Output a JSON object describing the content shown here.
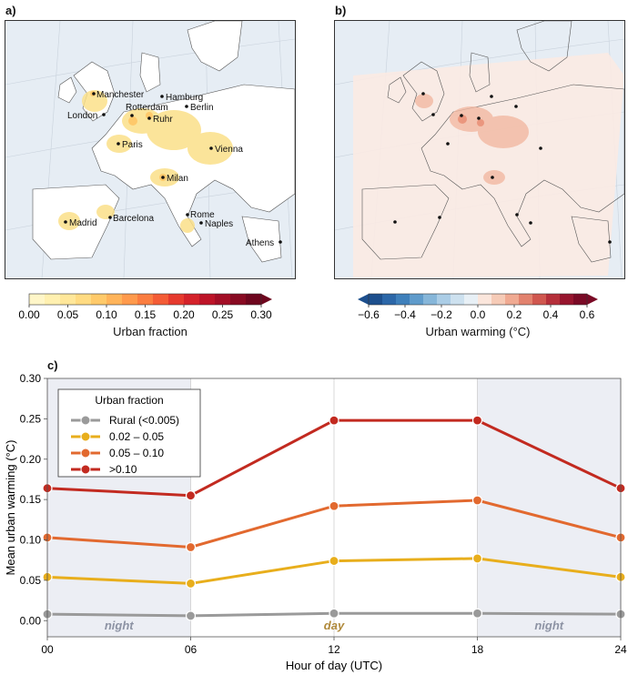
{
  "panels": {
    "a": "a)",
    "b": "b)",
    "c": "c)"
  },
  "map_a": {
    "cities": [
      "Manchester",
      "Hamburg",
      "Rotterdam",
      "Berlin",
      "London",
      "Ruhr",
      "Paris",
      "Vienna",
      "Milan",
      "Madrid",
      "Barcelona",
      "Rome",
      "Naples",
      "Athens"
    ]
  },
  "colorbar_a": {
    "title": "Urban fraction",
    "ticks": [
      "0.00",
      "0.05",
      "0.10",
      "0.15",
      "0.20",
      "0.25",
      "0.30"
    ],
    "colors": [
      "#fff6c8",
      "#fff0b0",
      "#ffe79a",
      "#ffdb82",
      "#ffca6a",
      "#ffb45a",
      "#ff9a4c",
      "#fb7d40",
      "#f45c36",
      "#e63a2e",
      "#d4222a",
      "#bd1428",
      "#a30e26",
      "#880a22",
      "#6e061e"
    ]
  },
  "colorbar_b": {
    "title": "Urban warming (°C)",
    "ticks": [
      "−0.6",
      "−0.4",
      "−0.2",
      "0.0",
      "0.2",
      "0.4",
      "0.6"
    ],
    "colors": [
      "#1d4f8d",
      "#2c67a8",
      "#3f80bb",
      "#5f9bcb",
      "#86b6d9",
      "#abcde6",
      "#cde1ef",
      "#e8f0f6",
      "#fbe6dc",
      "#f6cbb7",
      "#f0aa92",
      "#e2826e",
      "#d0574f",
      "#b52f3a",
      "#97152e",
      "#7a0a26"
    ]
  },
  "chart_data": {
    "type": "line",
    "xlabel": "Hour of day (UTC)",
    "ylabel": "Mean urban warming (°C)",
    "x": [
      0,
      6,
      12,
      18,
      24
    ],
    "x_tick_labels": [
      "00",
      "06",
      "12",
      "18",
      "24"
    ],
    "ylim": [
      -0.02,
      0.3
    ],
    "xlim": [
      0,
      24
    ],
    "y_ticks": [
      0.0,
      0.05,
      0.1,
      0.15,
      0.2,
      0.25,
      0.3
    ],
    "y_tick_labels": [
      "0.00",
      "0.05",
      "0.10",
      "0.15",
      "0.20",
      "0.25",
      "0.30"
    ],
    "legend_title": "Urban fraction",
    "legend_position": "top-left",
    "grid": true,
    "series": [
      {
        "name": "Rural (<0.005)",
        "color": "#9a9a9a",
        "values": [
          0.008,
          0.006,
          0.009,
          0.009,
          0.008
        ]
      },
      {
        "name": "0.02 – 0.05",
        "color": "#e8ae1c",
        "values": [
          0.054,
          0.046,
          0.074,
          0.077,
          0.054
        ]
      },
      {
        "name": "0.05 – 0.10",
        "color": "#e2692f",
        "values": [
          0.103,
          0.091,
          0.142,
          0.149,
          0.103
        ]
      },
      {
        "name": ">0.10",
        "color": "#c22a20",
        "values": [
          0.164,
          0.155,
          0.248,
          0.248,
          0.164
        ]
      }
    ],
    "annotations": [
      {
        "text": "night",
        "x": 3,
        "color": "#8d93a4"
      },
      {
        "text": "day",
        "x": 12,
        "color": "#b08a3c"
      },
      {
        "text": "night",
        "x": 21,
        "color": "#8d93a4"
      }
    ],
    "shaded_ranges": [
      [
        0,
        6
      ],
      [
        18,
        24
      ]
    ]
  }
}
